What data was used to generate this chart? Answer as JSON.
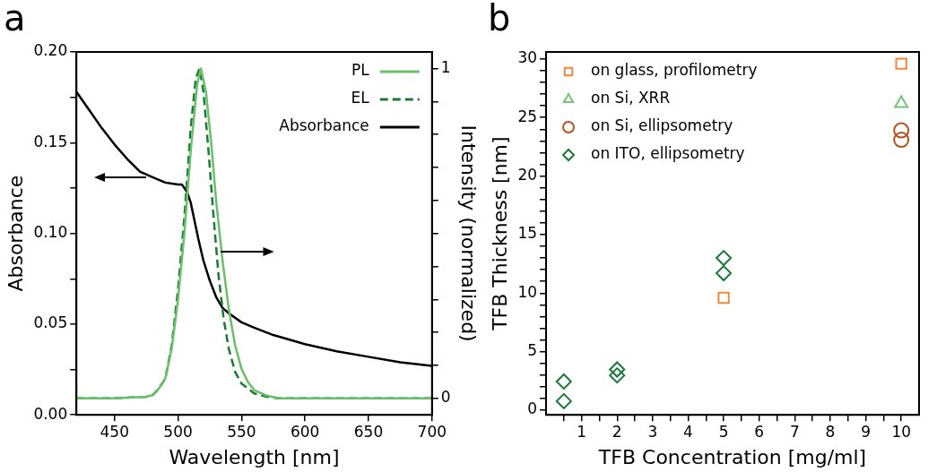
{
  "chart_data": [
    {
      "type": "line",
      "title": "a",
      "xlabel": "Wavelength [nm]",
      "ylabel": "Absorbance",
      "y2label": "Intensity (normalized)",
      "xlim": [
        420,
        700
      ],
      "xticks": [
        450,
        500,
        550,
        600,
        650,
        700
      ],
      "ylim": [
        0,
        0.2
      ],
      "yticks": [
        {
          "value": 0,
          "label": "0.00"
        },
        {
          "value": 0.025,
          "label": null
        },
        {
          "value": 0.05,
          "label": "0.05"
        },
        {
          "value": 0.075,
          "label": null
        },
        {
          "value": 0.1,
          "label": "0.10"
        },
        {
          "value": 0.125,
          "label": null
        },
        {
          "value": 0.15,
          "label": "0.15"
        },
        {
          "value": 0.175,
          "label": null
        },
        {
          "value": 0.2,
          "label": "0.20"
        }
      ],
      "y2lim": [
        -0.05,
        1.05
      ],
      "y2ticks": [
        0,
        {
          "value": 0.1,
          "label": null
        },
        {
          "value": 0.2,
          "label": null
        },
        {
          "value": 0.3,
          "label": null
        },
        {
          "value": 0.4,
          "label": null
        },
        {
          "value": 0.5,
          "label": null
        },
        {
          "value": 0.6,
          "label": null
        },
        {
          "value": 0.7,
          "label": null
        },
        {
          "value": 0.8,
          "label": null
        },
        {
          "value": 0.9,
          "label": null
        },
        1
      ],
      "legend": "top right",
      "marker": "none",
      "series": [
        {
          "name": "PL",
          "color": "#6abf69",
          "axis": "y2",
          "line_style": "solid",
          "x": [
            420,
            450,
            475,
            480,
            485,
            490,
            495,
            500,
            505,
            510,
            515,
            518,
            522,
            526,
            530,
            535,
            540,
            545,
            550,
            555,
            560,
            570,
            580,
            600,
            650,
            700
          ],
          "values": [
            0,
            0,
            0.005,
            0.01,
            0.03,
            0.06,
            0.15,
            0.3,
            0.5,
            0.75,
            0.95,
            1,
            0.93,
            0.78,
            0.6,
            0.42,
            0.27,
            0.16,
            0.09,
            0.05,
            0.025,
            0.008,
            0,
            0,
            0,
            0
          ]
        },
        {
          "name": "EL",
          "color": "#1a7a36",
          "axis": "y2",
          "line_style": "dashed",
          "x": [
            420,
            450,
            475,
            480,
            485,
            490,
            495,
            500,
            505,
            510,
            514,
            517,
            520,
            524,
            528,
            532,
            536,
            540,
            545,
            550,
            560,
            570,
            580,
            600,
            650,
            700
          ],
          "values": [
            0,
            0,
            0.005,
            0.01,
            0.03,
            0.06,
            0.16,
            0.33,
            0.55,
            0.82,
            0.97,
            1,
            0.93,
            0.75,
            0.55,
            0.37,
            0.24,
            0.15,
            0.08,
            0.045,
            0.015,
            0.005,
            0,
            0,
            0,
            0
          ]
        },
        {
          "name": "Absorbance",
          "color": "#000000",
          "axis": "y",
          "line_style": "solid",
          "x": [
            420,
            430,
            440,
            450,
            460,
            470,
            480,
            490,
            500,
            503,
            507,
            510,
            513,
            516,
            520,
            525,
            530,
            535,
            540,
            550,
            560,
            575,
            600,
            625,
            650,
            675,
            700
          ],
          "values": [
            0.178,
            0.168,
            0.158,
            0.149,
            0.141,
            0.134,
            0.131,
            0.128,
            0.127,
            0.127,
            0.123,
            0.117,
            0.107,
            0.097,
            0.085,
            0.074,
            0.065,
            0.059,
            0.056,
            0.051,
            0.048,
            0.044,
            0.039,
            0.035,
            0.032,
            0.029,
            0.027
          ]
        }
      ]
    },
    {
      "type": "scatter",
      "title": "b",
      "xlabel": "TFB Concentration [mg/ml]",
      "ylabel": "TFB Thickness [nm]",
      "xlim": [
        0,
        10.5
      ],
      "xticks": [
        {
          "value": 0.5,
          "label": null
        },
        1,
        {
          "value": 1.5,
          "label": null
        },
        2,
        {
          "value": 2.5,
          "label": null
        },
        3,
        {
          "value": 3.5,
          "label": null
        },
        4,
        {
          "value": 4.5,
          "label": null
        },
        5,
        {
          "value": 5.5,
          "label": null
        },
        6,
        {
          "value": 6.5,
          "label": null
        },
        7,
        {
          "value": 7.5,
          "label": null
        },
        8,
        {
          "value": 8.5,
          "label": null
        },
        9,
        {
          "value": 9.5,
          "label": null
        },
        10
      ],
      "ylim": [
        -0.4,
        30.6
      ],
      "yticks": [
        0,
        {
          "value": 1,
          "label": null
        },
        {
          "value": 2,
          "label": null
        },
        {
          "value": 3,
          "label": null
        },
        {
          "value": 4,
          "label": null
        },
        5,
        {
          "value": 6,
          "label": null
        },
        {
          "value": 7,
          "label": null
        },
        {
          "value": 8,
          "label": null
        },
        {
          "value": 9,
          "label": null
        },
        10,
        {
          "value": 11,
          "label": null
        },
        {
          "value": 12,
          "label": null
        },
        {
          "value": 13,
          "label": null
        },
        {
          "value": 14,
          "label": null
        },
        15,
        {
          "value": 16,
          "label": null
        },
        {
          "value": 17,
          "label": null
        },
        {
          "value": 18,
          "label": null
        },
        {
          "value": 19,
          "label": null
        },
        20,
        {
          "value": 21,
          "label": null
        },
        {
          "value": 22,
          "label": null
        },
        {
          "value": 23,
          "label": null
        },
        {
          "value": 24,
          "label": null
        },
        25,
        {
          "value": 26,
          "label": null
        },
        {
          "value": 27,
          "label": null
        },
        {
          "value": 28,
          "label": null
        },
        {
          "value": 29,
          "label": null
        },
        30
      ],
      "legend": "top left",
      "series": [
        {
          "name": "on glass, profilometry",
          "color": "#f4873c",
          "marker": "square",
          "x": [
            5,
            10
          ],
          "values": [
            9.6,
            29.6
          ]
        },
        {
          "name": "on Si, XRR",
          "color": "#74c476",
          "marker": "triangle",
          "x": [
            10
          ],
          "values": [
            26.2
          ]
        },
        {
          "name": "on Si, ellipsometry",
          "color": "#b5501f",
          "marker": "circle",
          "x": [
            10,
            10
          ],
          "values": [
            23.9,
            23.1
          ]
        },
        {
          "name": "on ITO, ellipsometry",
          "color": "#1b7837",
          "marker": "diamond",
          "x": [
            0.5,
            0.5,
            2,
            2,
            5,
            5
          ],
          "values": [
            2.45,
            0.77,
            3.48,
            2.97,
            13.0,
            11.7
          ]
        }
      ]
    }
  ]
}
